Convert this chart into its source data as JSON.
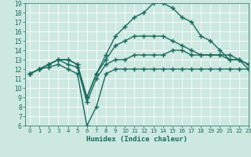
{
  "title": "",
  "xlabel": "Humidex (Indice chaleur)",
  "xlim": [
    -0.5,
    23
  ],
  "ylim": [
    6,
    19
  ],
  "yticks": [
    6,
    7,
    8,
    9,
    10,
    11,
    12,
    13,
    14,
    15,
    16,
    17,
    18,
    19
  ],
  "xticks": [
    0,
    1,
    2,
    3,
    4,
    5,
    6,
    7,
    8,
    9,
    10,
    11,
    12,
    13,
    14,
    15,
    16,
    17,
    18,
    19,
    20,
    21,
    22,
    23
  ],
  "bg_color": "#cce8e0",
  "line_color": "#1a6b5e",
  "line_width": 1.0,
  "marker": "+",
  "marker_size": 4,
  "lines": [
    [
      11.5,
      12.0,
      12.2,
      12.5,
      12.0,
      11.5,
      6.0,
      8.0,
      11.5,
      12.0,
      12.0,
      12.0,
      12.0,
      12.0,
      12.0,
      12.0,
      12.0,
      12.0,
      12.0,
      12.0,
      12.0,
      12.0,
      12.0,
      12.0
    ],
    [
      11.5,
      12.0,
      12.5,
      13.0,
      12.5,
      12.2,
      8.5,
      11.0,
      12.5,
      13.0,
      13.0,
      13.5,
      13.5,
      13.5,
      13.5,
      14.0,
      14.0,
      13.5,
      13.5,
      13.5,
      13.5,
      13.5,
      13.0,
      12.5
    ],
    [
      11.5,
      12.0,
      12.5,
      13.0,
      13.0,
      12.5,
      9.0,
      11.5,
      13.0,
      14.5,
      15.0,
      15.5,
      15.5,
      15.5,
      15.5,
      15.0,
      14.5,
      14.0,
      13.5,
      13.5,
      13.5,
      13.0,
      13.0,
      12.5
    ],
    [
      11.5,
      12.0,
      12.5,
      13.0,
      13.0,
      12.5,
      9.0,
      11.5,
      13.5,
      15.5,
      16.5,
      17.5,
      18.0,
      19.0,
      19.0,
      18.5,
      17.5,
      17.0,
      15.5,
      15.0,
      14.0,
      13.0,
      13.0,
      12.0
    ]
  ]
}
